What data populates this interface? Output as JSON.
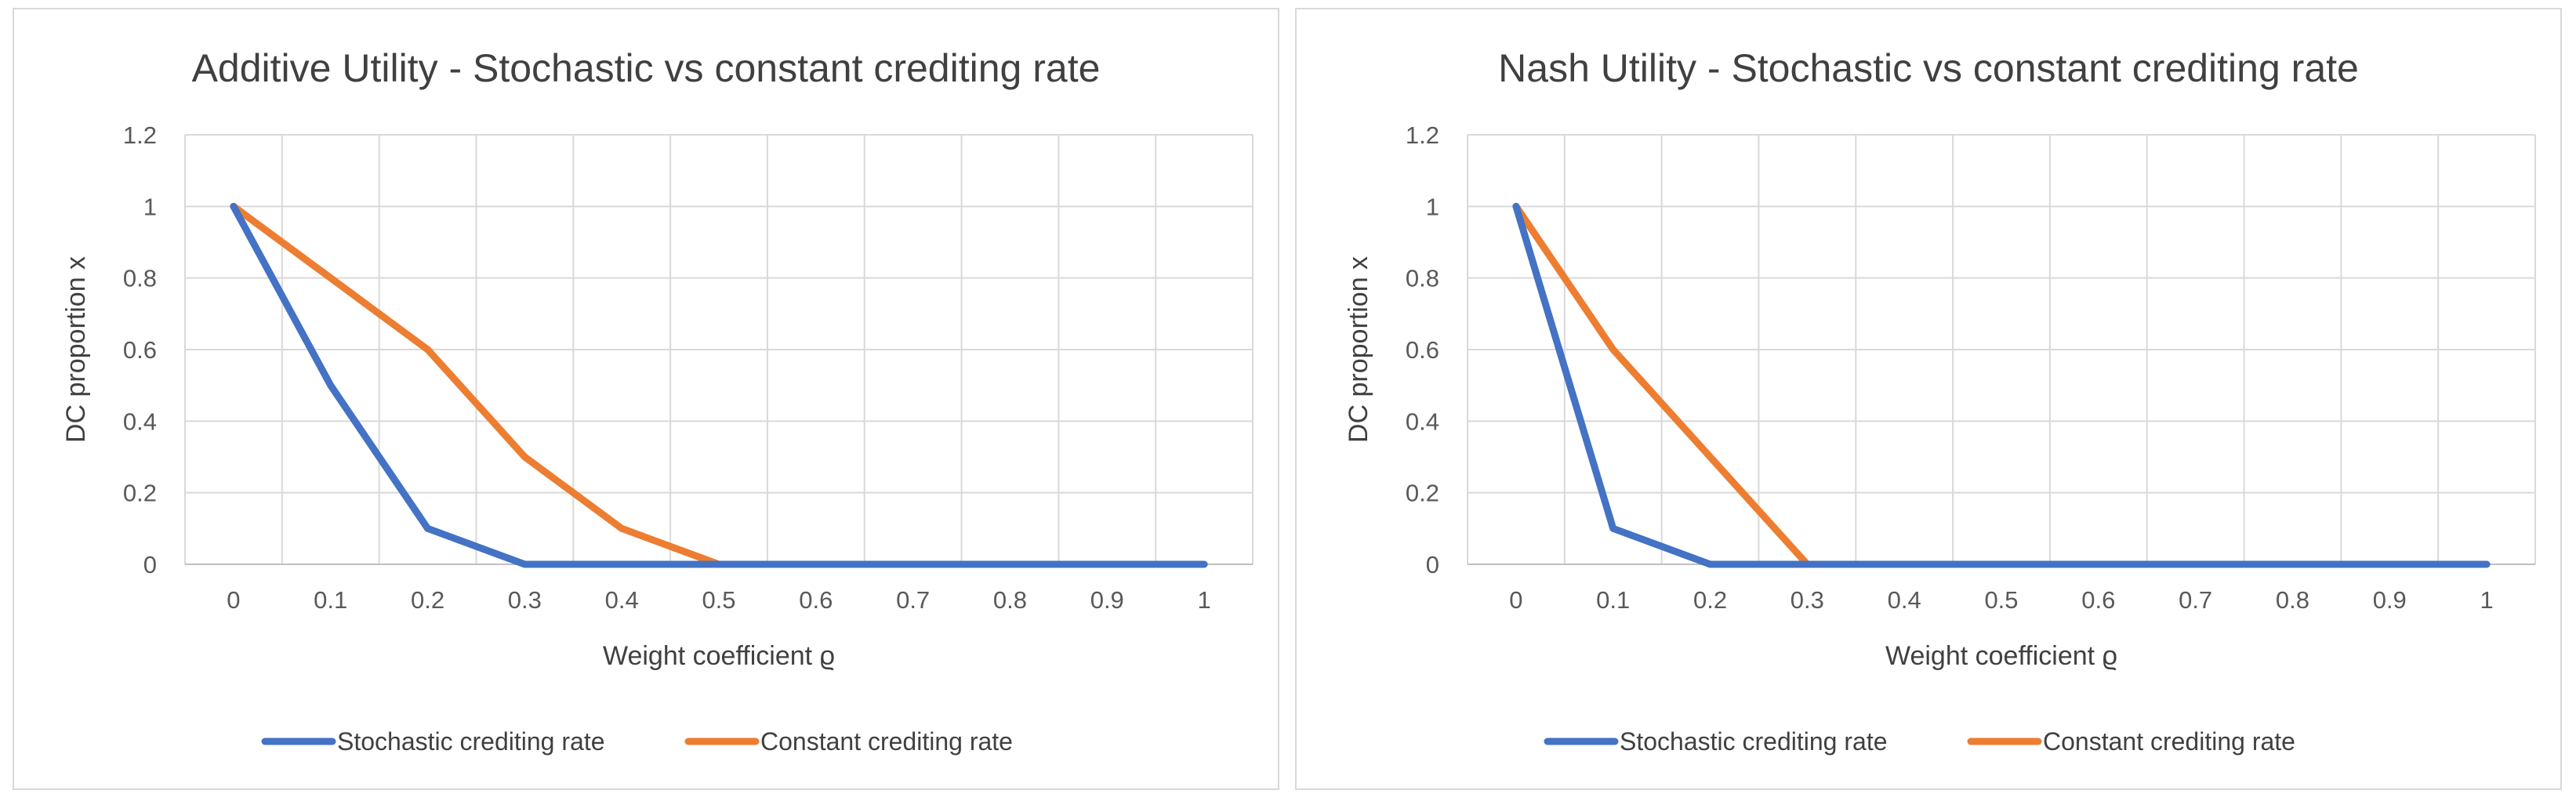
{
  "chart_data": [
    {
      "type": "line",
      "title": "Additive Utility - Stochastic vs constant crediting rate",
      "xlabel": "Weight coefficient ϱ",
      "ylabel": "DC proportion x",
      "x": [
        "0",
        "0.1",
        "0.2",
        "0.3",
        "0.4",
        "0.5",
        "0.6",
        "0.7",
        "0.8",
        "0.9",
        "1"
      ],
      "ylim": [
        0,
        1.2
      ],
      "yticks": [
        "0",
        "0.2",
        "0.4",
        "0.6",
        "0.8",
        "1",
        "1.2"
      ],
      "grid": true,
      "legend_position": "bottom",
      "series": [
        {
          "name": "Stochastic crediting rate",
          "color": "#4472c4",
          "values": [
            1,
            0.5,
            0.1,
            0,
            0,
            0,
            0,
            0,
            0,
            0,
            0
          ]
        },
        {
          "name": "Constant crediting rate",
          "color": "#ed7d31",
          "values": [
            1,
            0.8,
            0.6,
            0.3,
            0.1,
            0,
            0,
            0,
            0,
            0,
            0
          ]
        }
      ]
    },
    {
      "type": "line",
      "title": "Nash Utility - Stochastic vs constant crediting rate",
      "xlabel": "Weight coefficient ϱ",
      "ylabel": "DC proportion x",
      "x": [
        "0",
        "0.1",
        "0.2",
        "0.3",
        "0.4",
        "0.5",
        "0.6",
        "0.7",
        "0.8",
        "0.9",
        "1"
      ],
      "ylim": [
        0,
        1.2
      ],
      "yticks": [
        "0",
        "0.2",
        "0.4",
        "0.6",
        "0.8",
        "1",
        "1.2"
      ],
      "grid": true,
      "legend_position": "bottom",
      "series": [
        {
          "name": "Stochastic crediting rate",
          "color": "#4472c4",
          "values": [
            1,
            0.1,
            0,
            0,
            0,
            0,
            0,
            0,
            0,
            0,
            0
          ]
        },
        {
          "name": "Constant crediting rate",
          "color": "#ed7d31",
          "values": [
            1,
            0.6,
            0.3,
            0,
            0,
            0,
            0,
            0,
            0,
            0,
            0
          ]
        }
      ]
    }
  ]
}
